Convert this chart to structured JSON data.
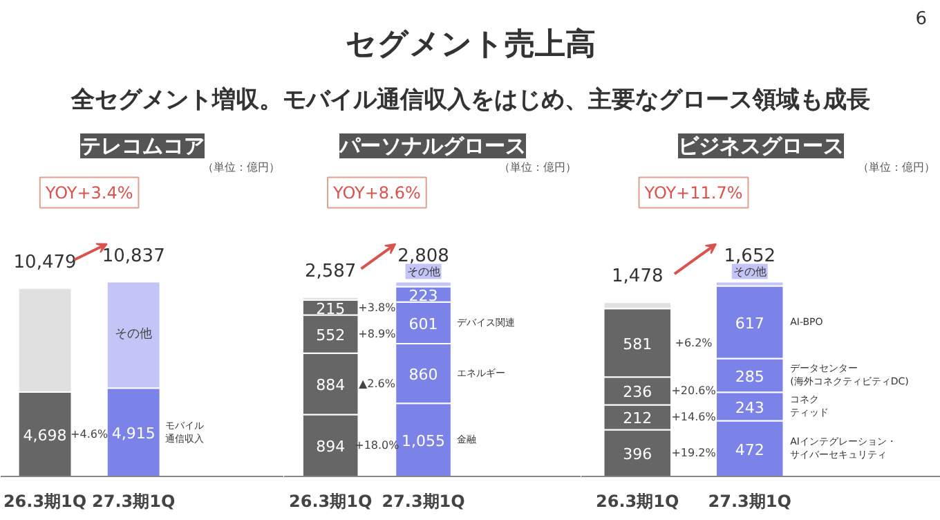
{
  "chart_data": [
    {
      "type": "other",
      "title": "セグメント売上高",
      "subtitle": "全セグメント増収。モバイル通信収入をはじめ、主要なグロース領域も成長",
      "annotations": [
        "6"
      ]
    },
    {
      "type": "bar",
      "stacked": true,
      "title": "テレコムコア",
      "categories": [
        "26.3期1Q",
        "27.3期1Q"
      ],
      "totals": [
        "10,479",
        "10,837"
      ],
      "annotations": [
        "YOY+3.4%",
        "（単位：億円）",
        "+4.6%"
      ],
      "series": [
        {
          "name": "モバイル通信収入",
          "colors": [
            "#666666",
            "#7b83e8"
          ],
          "values": [
            4698,
            4915
          ],
          "value_labels": [
            "4,698",
            "4,915"
          ]
        },
        {
          "name": "その他",
          "colors": [
            "#e0e0e0",
            "#c2c5f5"
          ],
          "values": [
            5781,
            5922
          ],
          "value_labels": [
            null,
            null
          ]
        }
      ]
    },
    {
      "type": "bar",
      "stacked": true,
      "title": "パーソナルグロース",
      "categories": [
        "26.3期1Q",
        "27.3期1Q"
      ],
      "totals": [
        "2,587",
        "2,808"
      ],
      "annotations": [
        "YOY+8.6%",
        "（単位：億円）",
        "+18.0%",
        "▲2.6%",
        "+8.9%",
        "+3.8%"
      ],
      "series": [
        {
          "name": "金融",
          "colors": [
            "#666666",
            "#7b83e8"
          ],
          "values": [
            894,
            1055
          ],
          "value_labels": [
            "894",
            "1,055"
          ]
        },
        {
          "name": "エネルギー",
          "colors": [
            "#666666",
            "#7b83e8"
          ],
          "values": [
            884,
            860
          ],
          "value_labels": [
            "884",
            "860"
          ]
        },
        {
          "name": "デバイス関連",
          "colors": [
            "#666666",
            "#7b83e8"
          ],
          "values": [
            552,
            601
          ],
          "value_labels": [
            "552",
            "601"
          ]
        },
        {
          "colors": [
            "#666666",
            "#7b83e8"
          ],
          "values": [
            215,
            223
          ],
          "value_labels": [
            "215",
            "223"
          ]
        },
        {
          "name": "その他",
          "colors": [
            "#e0e0e0",
            "#c2c5f5"
          ],
          "values": [
            42,
            69
          ],
          "value_labels": [
            null,
            null
          ]
        }
      ]
    },
    {
      "type": "bar",
      "stacked": true,
      "title": "ビジネスグロース",
      "categories": [
        "26.3期1Q",
        "27.3期1Q"
      ],
      "totals": [
        "1,478",
        "1,652"
      ],
      "annotations": [
        "YOY+11.7%",
        "（単位：億円）",
        "+19.2%",
        "+14.6%",
        "+20.6%",
        "+6.2%"
      ],
      "series": [
        {
          "name": "AIインテグレーション・サイバーセキュリティ",
          "colors": [
            "#666666",
            "#7b83e8"
          ],
          "values": [
            396,
            472
          ],
          "value_labels": [
            "396",
            "472"
          ]
        },
        {
          "name": "コネクティッド",
          "colors": [
            "#666666",
            "#7b83e8"
          ],
          "values": [
            212,
            243
          ],
          "value_labels": [
            "212",
            "243"
          ]
        },
        {
          "name": "データセンター(海外コネクティビティDC)",
          "colors": [
            "#666666",
            "#7b83e8"
          ],
          "values": [
            236,
            285
          ],
          "value_labels": [
            "236",
            "285"
          ]
        },
        {
          "name": "AI-BPO",
          "colors": [
            "#666666",
            "#7b83e8"
          ],
          "values": [
            581,
            617
          ],
          "value_labels": [
            "581",
            "617"
          ]
        },
        {
          "name": "その他",
          "colors": [
            "#e0e0e0",
            "#c2c5f5"
          ],
          "values": [
            53,
            35
          ],
          "value_labels": [
            null,
            null
          ]
        }
      ]
    }
  ]
}
